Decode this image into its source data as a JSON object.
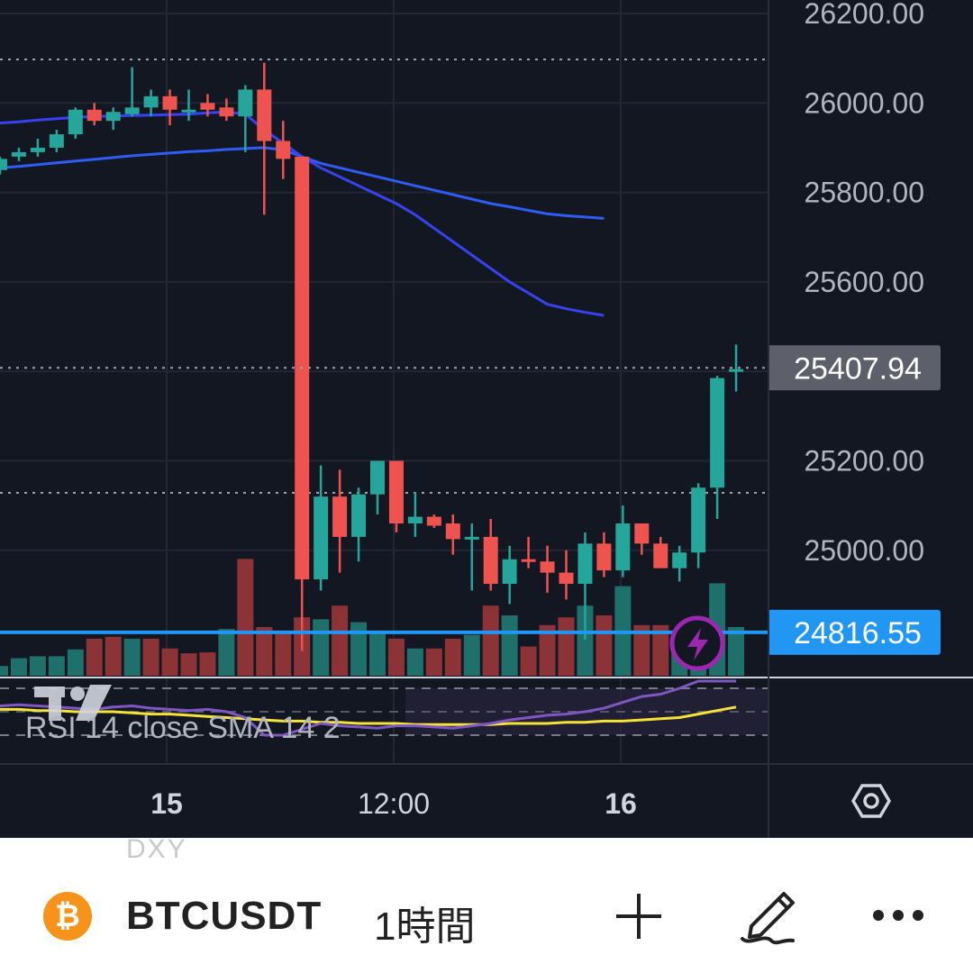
{
  "price_axis": {
    "ticks": [
      "26200.00",
      "26000.00",
      "25800.00",
      "25600.00",
      "25200.00",
      "25000.00"
    ],
    "current_price_label": "25407.94",
    "hline_price_label": "24816.55"
  },
  "time_axis": {
    "labels": [
      "15",
      "12:00",
      "16"
    ]
  },
  "indicator": {
    "legend": "RSI 14 close SMA 14 2"
  },
  "toolbar": {
    "watermark": "DXY",
    "symbol": "BTCUSDT",
    "interval": "1時間",
    "add_icon": "plus-icon",
    "draw_icon": "pencil-icon",
    "more_icon": "more-icon"
  },
  "colors": {
    "up": "#26a69a",
    "down": "#ef5350",
    "ma_short": "#3742f0",
    "ma_long": "#2f5cf5",
    "hline": "#2196f3",
    "rsi": "#7e57c2",
    "rsi_sma": "#f5e339",
    "price_badge": "#5d606b"
  },
  "chart_data": {
    "type": "candlestick",
    "symbol": "BTCUSDT",
    "interval": "1時間",
    "ylim": [
      24700,
      26200
    ],
    "current_price": 25407.94,
    "horizontal_line": 24816.55,
    "x_tick_labels": [
      "15",
      "12:00",
      "16"
    ],
    "candles": [
      {
        "o": 25850,
        "h": 25880,
        "l": 25840,
        "c": 25875
      },
      {
        "o": 25880,
        "h": 25900,
        "l": 25870,
        "c": 25890
      },
      {
        "o": 25890,
        "h": 25920,
        "l": 25880,
        "c": 25900
      },
      {
        "o": 25900,
        "h": 25940,
        "l": 25890,
        "c": 25930
      },
      {
        "o": 25930,
        "h": 25990,
        "l": 25920,
        "c": 25985
      },
      {
        "o": 25985,
        "h": 26000,
        "l": 25950,
        "c": 25960
      },
      {
        "o": 25960,
        "h": 25990,
        "l": 25940,
        "c": 25980
      },
      {
        "o": 25975,
        "h": 26080,
        "l": 25970,
        "c": 25990
      },
      {
        "o": 25990,
        "h": 26030,
        "l": 25970,
        "c": 26015
      },
      {
        "o": 26015,
        "h": 26030,
        "l": 25950,
        "c": 25985
      },
      {
        "o": 25985,
        "h": 26030,
        "l": 25960,
        "c": 25985
      },
      {
        "o": 26000,
        "h": 26020,
        "l": 25970,
        "c": 25985
      },
      {
        "o": 25990,
        "h": 26010,
        "l": 25960,
        "c": 25970
      },
      {
        "o": 25970,
        "h": 26040,
        "l": 25890,
        "c": 26030
      },
      {
        "o": 26030,
        "h": 26090,
        "l": 25750,
        "c": 25915
      },
      {
        "o": 25915,
        "h": 25960,
        "l": 25830,
        "c": 25875
      },
      {
        "o": 25880,
        "h": 25880,
        "l": 24775,
        "c": 24935
      },
      {
        "o": 24935,
        "h": 25190,
        "l": 24910,
        "c": 25120
      },
      {
        "o": 25120,
        "h": 25180,
        "l": 24950,
        "c": 25030
      },
      {
        "o": 25030,
        "h": 25140,
        "l": 24975,
        "c": 25125
      },
      {
        "o": 25125,
        "h": 25200,
        "l": 25080,
        "c": 25200
      },
      {
        "o": 25200,
        "h": 25200,
        "l": 25040,
        "c": 25060
      },
      {
        "o": 25060,
        "h": 25130,
        "l": 25030,
        "c": 25075
      },
      {
        "o": 25075,
        "h": 25080,
        "l": 25050,
        "c": 25055
      },
      {
        "o": 25060,
        "h": 25080,
        "l": 24990,
        "c": 25025
      },
      {
        "o": 25025,
        "h": 25060,
        "l": 24910,
        "c": 25030
      },
      {
        "o": 25030,
        "h": 25070,
        "l": 24910,
        "c": 24925
      },
      {
        "o": 24925,
        "h": 25010,
        "l": 24880,
        "c": 24980
      },
      {
        "o": 24980,
        "h": 25030,
        "l": 24960,
        "c": 24975
      },
      {
        "o": 24975,
        "h": 25010,
        "l": 24905,
        "c": 24950
      },
      {
        "o": 24950,
        "h": 25000,
        "l": 24890,
        "c": 24925
      },
      {
        "o": 24925,
        "h": 25040,
        "l": 24800,
        "c": 25015
      },
      {
        "o": 25015,
        "h": 25040,
        "l": 24940,
        "c": 24955
      },
      {
        "o": 24955,
        "h": 25100,
        "l": 24940,
        "c": 25060
      },
      {
        "o": 25060,
        "h": 25060,
        "l": 24990,
        "c": 25015
      },
      {
        "o": 25015,
        "h": 25030,
        "l": 24960,
        "c": 24960
      },
      {
        "o": 24960,
        "h": 25010,
        "l": 24930,
        "c": 24995
      },
      {
        "o": 24995,
        "h": 25150,
        "l": 24960,
        "c": 25140
      },
      {
        "o": 25140,
        "h": 25390,
        "l": 25070,
        "c": 25385
      },
      {
        "o": 25400,
        "h": 25460,
        "l": 25355,
        "c": 25405
      }
    ],
    "volume": [
      {
        "v": 0.1,
        "up": true
      },
      {
        "v": 0.18,
        "up": true
      },
      {
        "v": 0.2,
        "up": true
      },
      {
        "v": 0.2,
        "up": true
      },
      {
        "v": 0.27,
        "up": true
      },
      {
        "v": 0.38,
        "up": false
      },
      {
        "v": 0.4,
        "up": false
      },
      {
        "v": 0.38,
        "up": true
      },
      {
        "v": 0.38,
        "up": false
      },
      {
        "v": 0.28,
        "up": false
      },
      {
        "v": 0.23,
        "up": false
      },
      {
        "v": 0.24,
        "up": false
      },
      {
        "v": 0.48,
        "up": true
      },
      {
        "v": 1.2,
        "up": false
      },
      {
        "v": 0.5,
        "up": false
      },
      {
        "v": 0.45,
        "up": false
      },
      {
        "v": 0.6,
        "up": false
      },
      {
        "v": 0.58,
        "up": true
      },
      {
        "v": 0.72,
        "up": false
      },
      {
        "v": 0.55,
        "up": true
      },
      {
        "v": 0.45,
        "up": true
      },
      {
        "v": 0.38,
        "up": false
      },
      {
        "v": 0.28,
        "up": true
      },
      {
        "v": 0.28,
        "up": false
      },
      {
        "v": 0.38,
        "up": false
      },
      {
        "v": 0.42,
        "up": true
      },
      {
        "v": 0.72,
        "up": false
      },
      {
        "v": 0.62,
        "up": true
      },
      {
        "v": 0.3,
        "up": false
      },
      {
        "v": 0.52,
        "up": false
      },
      {
        "v": 0.6,
        "up": false
      },
      {
        "v": 0.72,
        "up": true
      },
      {
        "v": 0.62,
        "up": false
      },
      {
        "v": 0.92,
        "up": true
      },
      {
        "v": 0.52,
        "up": false
      },
      {
        "v": 0.52,
        "up": false
      },
      {
        "v": 0.42,
        "up": true
      },
      {
        "v": 0.52,
        "up": true
      },
      {
        "v": 0.95,
        "up": true
      },
      {
        "v": 0.5,
        "up": true
      }
    ],
    "ma_short": [
      25955,
      25958,
      25962,
      25965,
      25968,
      25970,
      25971,
      25972,
      25973,
      25974,
      25975,
      25978,
      25980,
      25975,
      25940,
      25910,
      25880,
      25855,
      25835,
      25815,
      25795,
      25775,
      25750,
      25720,
      25690,
      25660,
      25630,
      25600,
      25575,
      25550,
      25540,
      25532,
      25525
    ],
    "ma_long": [
      25855,
      25858,
      25862,
      25866,
      25870,
      25874,
      25878,
      25882,
      25885,
      25888,
      25891,
      25893,
      25896,
      25898,
      25900,
      25895,
      25880,
      25865,
      25855,
      25845,
      25835,
      25825,
      25815,
      25805,
      25795,
      25785,
      25775,
      25768,
      25760,
      25752,
      25748,
      25745,
      25742
    ],
    "rsi": [
      55,
      56,
      55,
      54,
      53,
      52,
      54,
      55,
      53,
      52,
      51,
      52,
      50,
      45,
      30,
      30,
      35,
      40,
      38,
      37,
      36,
      38,
      38,
      37,
      36,
      38,
      40,
      43,
      45,
      47,
      48,
      50,
      53,
      58,
      63,
      65,
      70,
      85,
      88,
      88
    ],
    "rsi_sma": [
      52,
      52,
      51,
      51,
      50,
      50,
      50,
      49,
      48,
      48,
      47,
      46,
      45,
      44,
      43,
      42,
      42,
      41,
      41,
      40,
      40,
      40,
      39,
      39,
      39,
      39,
      39,
      40,
      40,
      40,
      41,
      41,
      42,
      42,
      43,
      44,
      45,
      48,
      51,
      54
    ]
  }
}
